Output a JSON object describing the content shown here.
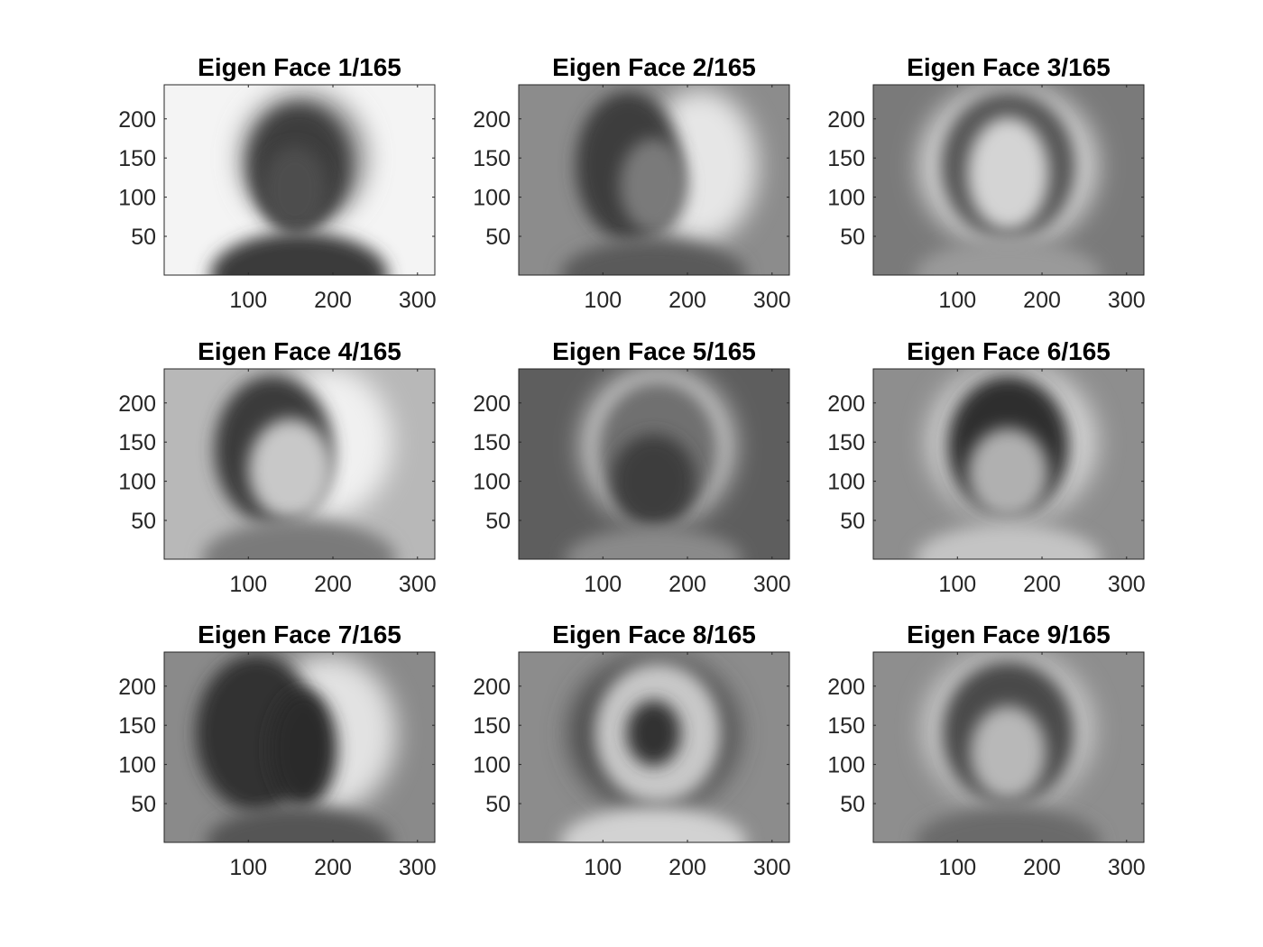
{
  "chart_data": [
    {
      "type": "heatmap",
      "title": "Eigen Face 1/165",
      "xticks": [
        100,
        200,
        300
      ],
      "yticks": [
        50,
        100,
        150,
        200
      ],
      "xlim": [
        0.5,
        320.5
      ],
      "ylim": [
        0.5,
        243.5
      ],
      "colormap": "gray",
      "background": "#f4f4f4",
      "features": [
        {
          "kind": "halo",
          "cx": 165,
          "cy": 150,
          "rx": 75,
          "ry": 85,
          "tone": "#8a8a8a"
        },
        {
          "kind": "head",
          "cx": 160,
          "cy": 140,
          "rx": 60,
          "ry": 78,
          "tone": "#3c3c3c"
        },
        {
          "kind": "face",
          "cx": 155,
          "cy": 110,
          "rx": 38,
          "ry": 55,
          "tone": "#4e4e4e"
        },
        {
          "kind": "body",
          "cx": 160,
          "cy": 0,
          "rx": 105,
          "ry": 55,
          "tone": "#3a3a3a"
        }
      ]
    },
    {
      "type": "heatmap",
      "title": "Eigen Face 2/165",
      "xticks": [
        100,
        200,
        300
      ],
      "yticks": [
        50,
        100,
        150,
        200
      ],
      "xlim": [
        0.5,
        320.5
      ],
      "ylim": [
        0.5,
        243.5
      ],
      "colormap": "gray",
      "background": "#8c8c8c",
      "features": [
        {
          "kind": "halo",
          "cx": 215,
          "cy": 140,
          "rx": 68,
          "ry": 98,
          "tone": "#e6e6e6"
        },
        {
          "kind": "head",
          "cx": 130,
          "cy": 140,
          "rx": 62,
          "ry": 95,
          "tone": "#3e3e3e"
        },
        {
          "kind": "face",
          "cx": 160,
          "cy": 115,
          "rx": 40,
          "ry": 60,
          "tone": "#7a7a7a"
        },
        {
          "kind": "body",
          "cx": 160,
          "cy": 0,
          "rx": 110,
          "ry": 45,
          "tone": "#5a5a5a"
        }
      ]
    },
    {
      "type": "heatmap",
      "title": "Eigen Face 3/165",
      "xticks": [
        100,
        200,
        300
      ],
      "yticks": [
        50,
        100,
        150,
        200
      ],
      "xlim": [
        0.5,
        320.5
      ],
      "ylim": [
        0.5,
        243.5
      ],
      "colormap": "gray",
      "background": "#7a7a7a",
      "features": [
        {
          "kind": "halo",
          "cx": 160,
          "cy": 140,
          "rx": 105,
          "ry": 105,
          "tone": "#d8d8d8"
        },
        {
          "kind": "head",
          "cx": 160,
          "cy": 140,
          "rx": 80,
          "ry": 95,
          "tone": "#555555"
        },
        {
          "kind": "face",
          "cx": 160,
          "cy": 130,
          "rx": 48,
          "ry": 72,
          "tone": "#d4d4d4"
        },
        {
          "kind": "body",
          "cx": 160,
          "cy": 0,
          "rx": 110,
          "ry": 45,
          "tone": "#9a9a9a"
        }
      ]
    },
    {
      "type": "heatmap",
      "title": "Eigen Face 4/165",
      "xticks": [
        100,
        200,
        300
      ],
      "yticks": [
        50,
        100,
        150,
        200
      ],
      "xlim": [
        0.5,
        320.5
      ],
      "ylim": [
        0.5,
        243.5
      ],
      "colormap": "gray",
      "background": "#b8b8b8",
      "features": [
        {
          "kind": "halo",
          "cx": 195,
          "cy": 150,
          "rx": 75,
          "ry": 95,
          "tone": "#f0f0f0"
        },
        {
          "kind": "head",
          "cx": 130,
          "cy": 140,
          "rx": 70,
          "ry": 95,
          "tone": "#3a3a3a"
        },
        {
          "kind": "face",
          "cx": 150,
          "cy": 115,
          "rx": 50,
          "ry": 65,
          "tone": "#c8c8c8"
        },
        {
          "kind": "body",
          "cx": 160,
          "cy": 0,
          "rx": 115,
          "ry": 50,
          "tone": "#7a7a7a"
        }
      ]
    },
    {
      "type": "heatmap",
      "title": "Eigen Face 5/165",
      "xticks": [
        100,
        200,
        300
      ],
      "yticks": [
        50,
        100,
        150,
        200
      ],
      "xlim": [
        0.5,
        320.5
      ],
      "ylim": [
        0.5,
        243.5
      ],
      "colormap": "gray",
      "background": "#5e5e5e",
      "features": [
        {
          "kind": "halo",
          "cx": 165,
          "cy": 145,
          "rx": 90,
          "ry": 100,
          "tone": "#d0d0d0"
        },
        {
          "kind": "head",
          "cx": 165,
          "cy": 140,
          "rx": 72,
          "ry": 88,
          "tone": "#707070"
        },
        {
          "kind": "face",
          "cx": 160,
          "cy": 100,
          "rx": 50,
          "ry": 60,
          "tone": "#3e3e3e"
        },
        {
          "kind": "body",
          "cx": 160,
          "cy": 0,
          "rx": 105,
          "ry": 40,
          "tone": "#8a8a8a"
        }
      ]
    },
    {
      "type": "heatmap",
      "title": "Eigen Face 6/165",
      "xticks": [
        100,
        200,
        300
      ],
      "yticks": [
        50,
        100,
        150,
        200
      ],
      "xlim": [
        0.5,
        320.5
      ],
      "ylim": [
        0.5,
        243.5
      ],
      "colormap": "gray",
      "background": "#8e8e8e",
      "features": [
        {
          "kind": "halo",
          "cx": 165,
          "cy": 150,
          "rx": 100,
          "ry": 100,
          "tone": "#d6d6d6"
        },
        {
          "kind": "head",
          "cx": 160,
          "cy": 145,
          "rx": 72,
          "ry": 90,
          "tone": "#2e2e2e"
        },
        {
          "kind": "face",
          "cx": 160,
          "cy": 110,
          "rx": 48,
          "ry": 58,
          "tone": "#b0b0b0"
        },
        {
          "kind": "body",
          "cx": 160,
          "cy": 0,
          "rx": 110,
          "ry": 45,
          "tone": "#c4c4c4"
        }
      ]
    },
    {
      "type": "heatmap",
      "title": "Eigen Face 7/165",
      "xticks": [
        100,
        200,
        300
      ],
      "yticks": [
        50,
        100,
        150,
        200
      ],
      "xlim": [
        0.5,
        320.5
      ],
      "ylim": [
        0.5,
        243.5
      ],
      "colormap": "gray",
      "background": "#8a8a8a",
      "features": [
        {
          "kind": "halo",
          "cx": 195,
          "cy": 140,
          "rx": 80,
          "ry": 100,
          "tone": "#e2e2e2"
        },
        {
          "kind": "head",
          "cx": 110,
          "cy": 140,
          "rx": 72,
          "ry": 100,
          "tone": "#303030"
        },
        {
          "kind": "face",
          "cx": 165,
          "cy": 120,
          "rx": 40,
          "ry": 75,
          "tone": "#2a2a2a"
        },
        {
          "kind": "body",
          "cx": 160,
          "cy": 0,
          "rx": 110,
          "ry": 45,
          "tone": "#555555"
        }
      ]
    },
    {
      "type": "heatmap",
      "title": "Eigen Face 8/165",
      "xticks": [
        100,
        200,
        300
      ],
      "yticks": [
        50,
        100,
        150,
        200
      ],
      "xlim": [
        0.5,
        320.5
      ],
      "ylim": [
        0.5,
        243.5
      ],
      "colormap": "gray",
      "background": "#8c8c8c",
      "features": [
        {
          "kind": "halo",
          "cx": 160,
          "cy": 140,
          "rx": 100,
          "ry": 100,
          "tone": "#4a4a4a"
        },
        {
          "kind": "head",
          "cx": 165,
          "cy": 140,
          "rx": 75,
          "ry": 90,
          "tone": "#c8c8c8"
        },
        {
          "kind": "face",
          "cx": 160,
          "cy": 140,
          "rx": 32,
          "ry": 42,
          "tone": "#303030"
        },
        {
          "kind": "body",
          "cx": 160,
          "cy": 0,
          "rx": 110,
          "ry": 45,
          "tone": "#d2d2d2"
        }
      ]
    },
    {
      "type": "heatmap",
      "title": "Eigen Face 9/165",
      "xticks": [
        100,
        200,
        300
      ],
      "yticks": [
        50,
        100,
        150,
        200
      ],
      "xlim": [
        0.5,
        320.5
      ],
      "ylim": [
        0.5,
        243.5
      ],
      "colormap": "gray",
      "background": "#8e8e8e",
      "features": [
        {
          "kind": "halo",
          "cx": 160,
          "cy": 145,
          "rx": 100,
          "ry": 100,
          "tone": "#cfcfcf"
        },
        {
          "kind": "head",
          "cx": 160,
          "cy": 140,
          "rx": 78,
          "ry": 92,
          "tone": "#4a4a4a"
        },
        {
          "kind": "face",
          "cx": 160,
          "cy": 115,
          "rx": 45,
          "ry": 60,
          "tone": "#b8b8b8"
        },
        {
          "kind": "body",
          "cx": 160,
          "cy": 0,
          "rx": 110,
          "ry": 45,
          "tone": "#6a6a6a"
        }
      ]
    }
  ]
}
